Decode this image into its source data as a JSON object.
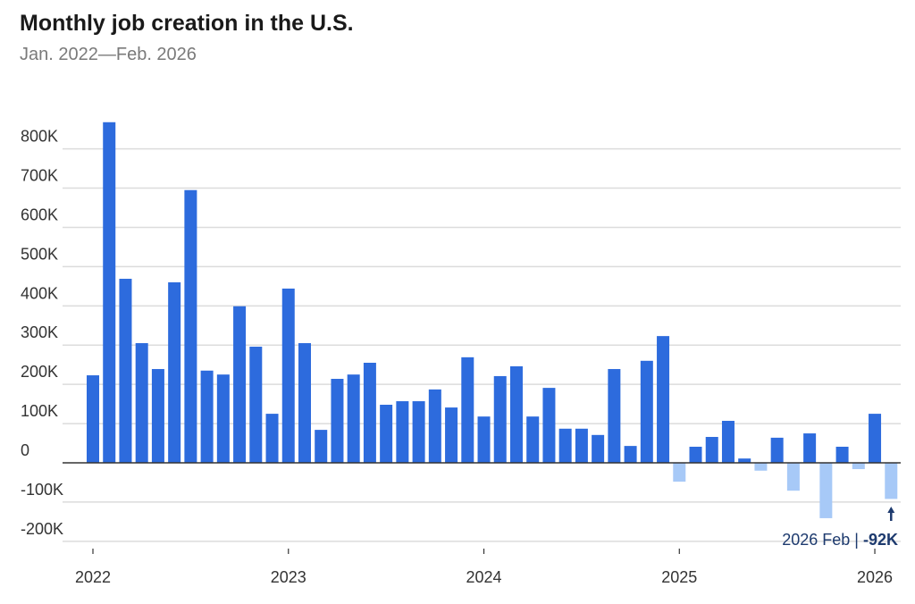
{
  "chart_data": {
    "type": "bar",
    "title": "Monthly job creation in the U.S.",
    "subtitle": "Jan. 2022—Feb. 2026",
    "xlabel": "",
    "ylabel": "",
    "ylim": [
      -200000,
      800000
    ],
    "yticks": [
      800000,
      700000,
      600000,
      500000,
      400000,
      300000,
      200000,
      100000,
      0,
      -100000,
      -200000
    ],
    "ytick_labels": [
      "800K",
      "700K",
      "600K",
      "500K",
      "400K",
      "300K",
      "200K",
      "100K",
      "0",
      "-100K",
      "-200K"
    ],
    "xtick_labels": [
      "2022",
      "2023",
      "2024",
      "2025",
      "2026"
    ],
    "grid": true,
    "colors": {
      "positive": "#2d6bdd",
      "negative": "#a7c9f7",
      "annotation": "#1d3a6e"
    },
    "start": "2022-01",
    "values": [
      223,
      868,
      469,
      305,
      239,
      460,
      695,
      235,
      225,
      399,
      296,
      125,
      444,
      305,
      84,
      214,
      225,
      255,
      148,
      157,
      157,
      187,
      141,
      269,
      118,
      221,
      246,
      118,
      191,
      87,
      87,
      71,
      239,
      43,
      260,
      323,
      -48,
      41,
      66,
      107,
      11,
      -20,
      64,
      -71,
      75,
      -141,
      41,
      -16,
      125,
      -92
    ],
    "value_unit": "thousands",
    "annotation": {
      "label": "2026 Feb",
      "separator": "|",
      "value": "-92K"
    }
  }
}
